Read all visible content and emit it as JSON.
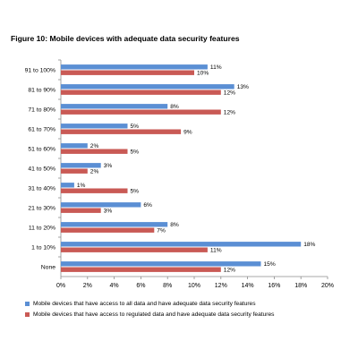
{
  "chart_data": {
    "type": "bar",
    "orientation": "horizontal",
    "title": "Figure 10: Mobile devices with adequate data security features",
    "categories": [
      "91 to 100%",
      "81 to 90%",
      "71 to 80%",
      "61 to 70%",
      "51 to 60%",
      "41 to 50%",
      "31 to 40%",
      "21 to 30%",
      "11 to 20%",
      "1 to 10%",
      "None"
    ],
    "series": [
      {
        "name": "Mobile devices that have access to all data and have adequate data security features",
        "color": "#5b8fd4",
        "values": [
          11,
          13,
          8,
          5,
          2,
          3,
          1,
          6,
          8,
          18,
          15
        ],
        "labels": [
          "11%",
          "13%",
          "8%",
          "5%",
          "2%",
          "3%",
          "1%",
          "6%",
          "8%",
          "18%",
          "15%"
        ]
      },
      {
        "name": "Mobile devices that have access to regulated data and have adequate data security features",
        "color": "#c95a55",
        "values": [
          10,
          12,
          12,
          9,
          5,
          2,
          5,
          3,
          7,
          11,
          12
        ],
        "labels": [
          "10%",
          "12%",
          "12%",
          "9%",
          "5%",
          "2%",
          "5%",
          "3%",
          "7%",
          "11%",
          "12%"
        ]
      }
    ],
    "xlim": [
      0,
      20
    ],
    "xticks": [
      "0%",
      "2%",
      "4%",
      "6%",
      "8%",
      "10%",
      "12%",
      "14%",
      "16%",
      "18%",
      "20%"
    ],
    "grid": false,
    "legend_position": "bottom"
  }
}
